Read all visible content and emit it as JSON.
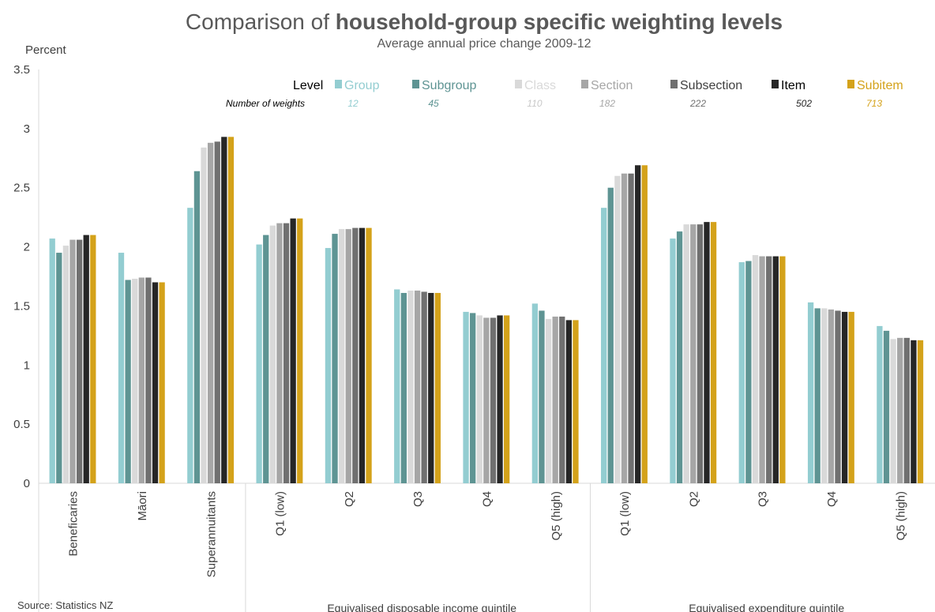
{
  "chart_data": {
    "type": "bar",
    "title_prefix": "Comparison of ",
    "title_bold": "household-group specific weighting levels",
    "subtitle": "Average annual price change 2009-12",
    "ylabel": "Percent",
    "ylim": [
      0,
      3.5
    ],
    "yticks": [
      "0",
      "0.5",
      "1",
      "1.5",
      "2",
      "2.5",
      "3",
      "3.5"
    ],
    "ytick_values": [
      0,
      0.5,
      1,
      1.5,
      2,
      2.5,
      3,
      3.5
    ],
    "grid": false,
    "legend_position": "top-right",
    "legend_title": "Level",
    "weights_title": "Number of weights",
    "categories": [
      "Beneficaries",
      "Māori",
      "Superannuitants",
      "Q1 (low)",
      "Q2",
      "Q3",
      "Q4",
      "Q5 (high)",
      "Q1 (low)",
      "Q2",
      "Q3",
      "Q4",
      "Q5 (high)"
    ],
    "category_groups": [
      {
        "label": "",
        "count": 3
      },
      {
        "label": "Equivalised disposable income quintile",
        "count": 5
      },
      {
        "label": "Equivalised expenditure quintile",
        "count": 5
      }
    ],
    "series": [
      {
        "name": "Group",
        "weights": "12",
        "color": "#93cdd1",
        "values": [
          2.07,
          1.95,
          2.33,
          2.02,
          1.99,
          1.64,
          1.45,
          1.52,
          2.33,
          2.07,
          1.87,
          1.53,
          1.33
        ]
      },
      {
        "name": "Subgroup",
        "weights": "45",
        "color": "#5e9493",
        "values": [
          1.95,
          1.72,
          2.64,
          2.1,
          2.11,
          1.61,
          1.44,
          1.46,
          2.5,
          2.13,
          1.88,
          1.48,
          1.29
        ]
      },
      {
        "name": "Class",
        "weights": "110",
        "color": "#d9d9d9",
        "values": [
          2.01,
          1.73,
          2.84,
          2.18,
          2.15,
          1.63,
          1.42,
          1.39,
          2.6,
          2.19,
          1.93,
          1.48,
          1.22
        ]
      },
      {
        "name": "Section",
        "weights": "182",
        "color": "#a6a6a6",
        "values": [
          2.06,
          1.74,
          2.88,
          2.2,
          2.15,
          1.63,
          1.4,
          1.41,
          2.62,
          2.19,
          1.92,
          1.47,
          1.23
        ]
      },
      {
        "name": "Subsection",
        "weights": "222",
        "color": "#707070",
        "values": [
          2.06,
          1.74,
          2.89,
          2.2,
          2.16,
          1.62,
          1.4,
          1.41,
          2.62,
          2.19,
          1.92,
          1.46,
          1.23
        ]
      },
      {
        "name": "Item",
        "weights": "502",
        "color": "#262626",
        "values": [
          2.1,
          1.7,
          2.93,
          2.24,
          2.16,
          1.61,
          1.42,
          1.38,
          2.69,
          2.21,
          1.92,
          1.45,
          1.21
        ]
      },
      {
        "name": "Subitem",
        "weights": "713",
        "color": "#d4a21a",
        "values": [
          2.1,
          1.7,
          2.93,
          2.24,
          2.16,
          1.61,
          1.42,
          1.38,
          2.69,
          2.21,
          1.92,
          1.45,
          1.21
        ]
      }
    ],
    "weights_colors": {
      "Group": "#93cdd1",
      "Subgroup": "#5e9493",
      "Class": "#c8c8c8",
      "Section": "#a6a6a6",
      "Subsection": "#707070",
      "Item": "#262626",
      "Subitem": "#d4a21a"
    }
  },
  "source": "Source: Statistics NZ"
}
